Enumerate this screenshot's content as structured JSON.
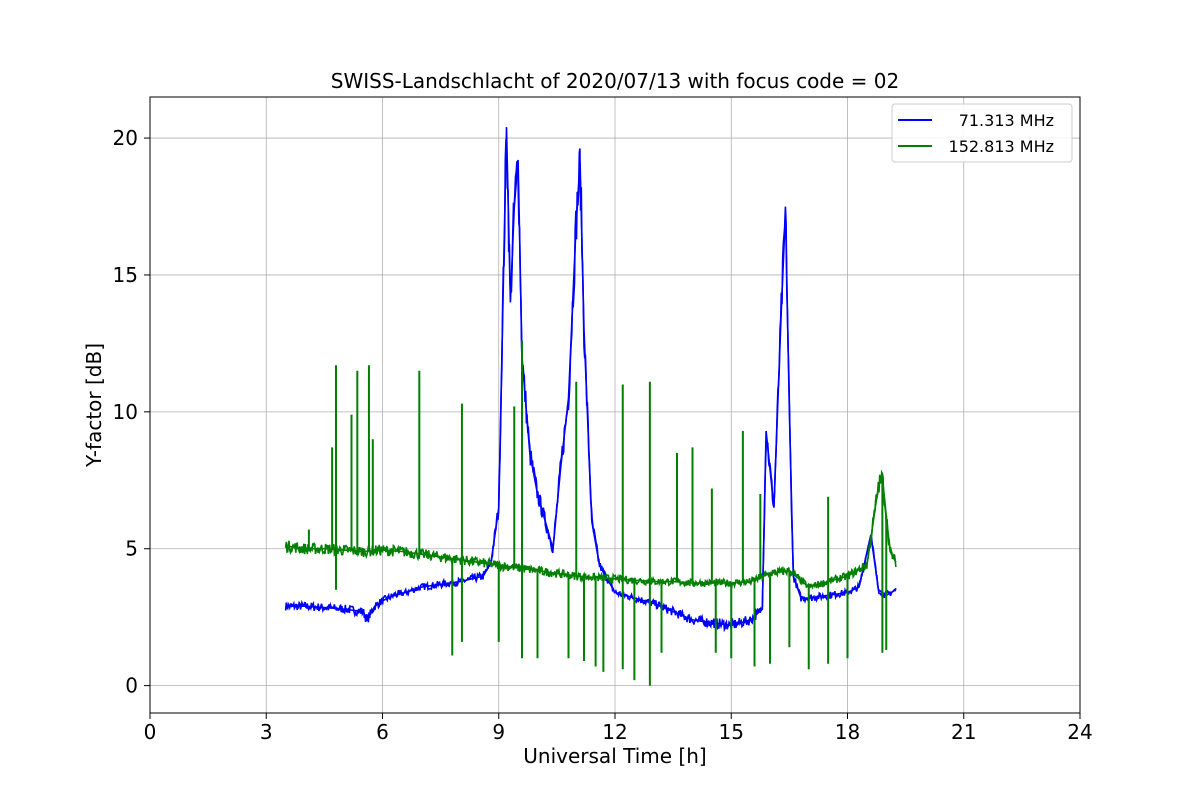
{
  "chart_data": {
    "type": "line",
    "title": "SWISS-Landschlacht of 2020/07/13 with focus code = 02",
    "xlabel": "Universal Time [h]",
    "ylabel": "Y-factor [dB]",
    "xlim": [
      0,
      24
    ],
    "ylim": [
      -1.0,
      21.5
    ],
    "xticks": [
      0,
      3,
      6,
      9,
      12,
      15,
      18,
      21,
      24
    ],
    "xtick_labels": [
      "0",
      "3",
      "6",
      "9",
      "12",
      "15",
      "18",
      "21",
      "24"
    ],
    "yticks": [
      0,
      5,
      10,
      15,
      20
    ],
    "ytick_labels": [
      "0",
      "5",
      "10",
      "15",
      "20"
    ],
    "grid": true,
    "legend_position": "top-right",
    "series": [
      {
        "name": "71.313 MHz",
        "color": "#0000ff",
        "x": [
          3.5,
          4.0,
          4.5,
          5.0,
          5.5,
          5.6,
          5.8,
          6.0,
          6.3,
          6.6,
          7.0,
          7.5,
          8.0,
          8.3,
          8.6,
          8.8,
          9.0,
          9.2,
          9.3,
          9.4,
          9.5,
          9.6,
          9.8,
          10.0,
          10.2,
          10.4,
          10.6,
          10.8,
          11.0,
          11.1,
          11.2,
          11.4,
          11.6,
          12.0,
          12.5,
          13.0,
          13.5,
          14.0,
          14.5,
          15.0,
          15.5,
          15.8,
          15.9,
          16.1,
          16.3,
          16.4,
          16.5,
          16.6,
          16.8,
          17.0,
          17.5,
          18.0,
          18.3,
          18.6,
          18.8,
          19.0,
          19.25
        ],
        "y": [
          2.9,
          2.9,
          2.85,
          2.8,
          2.7,
          2.4,
          2.9,
          3.1,
          3.3,
          3.4,
          3.6,
          3.7,
          3.8,
          3.9,
          4.0,
          4.5,
          6.5,
          20.4,
          14.0,
          17.5,
          19.2,
          12.0,
          8.5,
          7.0,
          6.0,
          5.0,
          8.0,
          10.5,
          17.0,
          19.1,
          13.0,
          6.0,
          4.4,
          3.4,
          3.2,
          3.0,
          2.7,
          2.4,
          2.3,
          2.2,
          2.4,
          2.8,
          9.3,
          6.5,
          14.0,
          17.3,
          10.0,
          4.0,
          3.2,
          3.2,
          3.3,
          3.4,
          3.6,
          5.5,
          3.5,
          3.3,
          3.5
        ]
      },
      {
        "name": "152.813 MHz",
        "color": "#008000",
        "x": [
          3.5,
          4.0,
          4.5,
          5.0,
          5.5,
          6.0,
          6.5,
          7.0,
          7.5,
          8.0,
          8.5,
          9.0,
          9.5,
          10.0,
          10.5,
          11.0,
          11.5,
          12.0,
          12.5,
          13.0,
          13.5,
          14.0,
          14.5,
          15.0,
          15.5,
          16.0,
          16.5,
          17.0,
          17.5,
          18.0,
          18.5,
          18.8,
          18.9,
          19.0,
          19.1,
          19.25
        ],
        "y": [
          5.1,
          5.0,
          5.0,
          4.95,
          4.9,
          4.95,
          4.9,
          4.8,
          4.7,
          4.6,
          4.5,
          4.4,
          4.3,
          4.2,
          4.1,
          4.0,
          3.95,
          3.9,
          3.85,
          3.8,
          3.8,
          3.75,
          3.75,
          3.75,
          3.8,
          4.1,
          4.2,
          3.6,
          3.8,
          4.0,
          4.4,
          7.3,
          7.6,
          6.2,
          4.9,
          4.5
        ],
        "spikes_up": [
          [
            4.1,
            5.7
          ],
          [
            4.7,
            8.7
          ],
          [
            4.8,
            11.7
          ],
          [
            5.2,
            9.9
          ],
          [
            5.35,
            11.5
          ],
          [
            5.65,
            11.7
          ],
          [
            5.75,
            9.0
          ],
          [
            6.95,
            11.5
          ],
          [
            8.05,
            10.3
          ],
          [
            9.4,
            10.2
          ],
          [
            9.6,
            12.6
          ],
          [
            11.0,
            11.1
          ],
          [
            12.2,
            11.0
          ],
          [
            12.9,
            11.1
          ],
          [
            13.6,
            8.5
          ],
          [
            14.0,
            8.7
          ],
          [
            14.5,
            7.2
          ],
          [
            15.3,
            9.3
          ],
          [
            15.75,
            7.0
          ],
          [
            17.5,
            6.9
          ],
          [
            18.6,
            5.2
          ]
        ],
        "spikes_down": [
          [
            4.8,
            3.5
          ],
          [
            7.8,
            1.1
          ],
          [
            8.05,
            1.6
          ],
          [
            9.0,
            1.6
          ],
          [
            9.6,
            1.0
          ],
          [
            10.0,
            1.0
          ],
          [
            10.8,
            1.0
          ],
          [
            11.2,
            0.9
          ],
          [
            11.5,
            0.7
          ],
          [
            11.7,
            0.5
          ],
          [
            12.2,
            0.6
          ],
          [
            12.5,
            0.2
          ],
          [
            12.9,
            0.0
          ],
          [
            13.2,
            1.2
          ],
          [
            14.6,
            1.2
          ],
          [
            15.0,
            1.0
          ],
          [
            15.6,
            0.7
          ],
          [
            16.0,
            0.8
          ],
          [
            16.5,
            1.4
          ],
          [
            17.0,
            0.6
          ],
          [
            17.5,
            0.8
          ],
          [
            18.0,
            1.0
          ],
          [
            18.9,
            1.2
          ],
          [
            19.0,
            1.3
          ]
        ]
      }
    ]
  }
}
